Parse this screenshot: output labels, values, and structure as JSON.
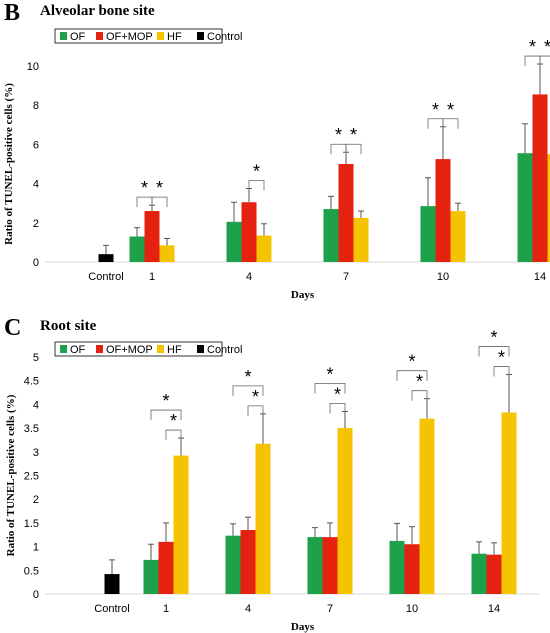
{
  "chart_data": [
    {
      "id": "B",
      "type": "bar",
      "panel_label": "B",
      "title": "Alveolar bone site",
      "ylabel": "Ratio of TUNEL-positive cells (%)",
      "xlabel": "Days",
      "ylim": [
        0,
        10
      ],
      "yticks": [
        "0",
        "2",
        "4",
        "6",
        "8",
        "10"
      ],
      "ytick_values": [
        0,
        2,
        4,
        6,
        8,
        10
      ],
      "categories": [
        "1",
        "4",
        "7",
        "10",
        "14"
      ],
      "control_label": "Control",
      "control": {
        "value": 0.4,
        "error": 0.45,
        "color": "#000000"
      },
      "legend": [
        "OF",
        "OF+MOP",
        "HF",
        "Control"
      ],
      "legend_colors": [
        "#1fa04a",
        "#e5210f",
        "#f5c400",
        "#000000"
      ],
      "series": [
        {
          "name": "OF",
          "color": "#1fa04a",
          "values": [
            1.3,
            2.05,
            2.7,
            2.85,
            5.55
          ],
          "errors": [
            0.45,
            1.0,
            0.65,
            1.45,
            1.5
          ]
        },
        {
          "name": "OF+MOP",
          "color": "#e5210f",
          "values": [
            2.6,
            3.05,
            5.0,
            5.25,
            8.55
          ],
          "errors": [
            0.3,
            0.7,
            0.6,
            1.65,
            1.55
          ]
        },
        {
          "name": "HF",
          "color": "#f5c400",
          "values": [
            0.85,
            1.35,
            2.25,
            2.6,
            5.5
          ],
          "errors": [
            0.35,
            0.6,
            0.35,
            0.4,
            0.85
          ]
        }
      ],
      "significance": [
        {
          "category_index": 0,
          "pairs": [
            [
              0,
              1
            ],
            [
              1,
              2
            ]
          ],
          "symbol": "*"
        },
        {
          "category_index": 1,
          "pairs": [
            [
              1,
              2
            ]
          ],
          "symbol": "*"
        },
        {
          "category_index": 2,
          "pairs": [
            [
              0,
              1
            ],
            [
              1,
              2
            ]
          ],
          "symbol": "*"
        },
        {
          "category_index": 3,
          "pairs": [
            [
              0,
              1
            ],
            [
              1,
              2
            ]
          ],
          "symbol": "*"
        },
        {
          "category_index": 4,
          "pairs": [
            [
              0,
              1
            ],
            [
              1,
              2
            ]
          ],
          "symbol": "*"
        }
      ],
      "legend_position": "top-left",
      "grid": false
    },
    {
      "id": "C",
      "type": "bar",
      "panel_label": "C",
      "title": "Root site",
      "ylabel": "Ratio of TUNEL-positive cells (%)",
      "xlabel": "Days",
      "ylim": [
        0,
        5
      ],
      "yticks": [
        "0",
        "0.5",
        "1",
        "1.5",
        "2",
        "2.5",
        "3",
        "3.5",
        "4",
        "4.5",
        "5"
      ],
      "ytick_values": [
        0,
        0.5,
        1,
        1.5,
        2,
        2.5,
        3,
        3.5,
        4,
        4.5,
        5
      ],
      "categories": [
        "1",
        "4",
        "7",
        "10",
        "14"
      ],
      "control_label": "Control",
      "control": {
        "value": 0.42,
        "error": 0.3,
        "color": "#000000"
      },
      "legend": [
        "OF",
        "OF+MOP",
        "HF",
        "Control"
      ],
      "legend_colors": [
        "#1fa04a",
        "#e5210f",
        "#f5c400",
        "#000000"
      ],
      "series": [
        {
          "name": "OF",
          "color": "#1fa04a",
          "values": [
            0.72,
            1.23,
            1.2,
            1.12,
            0.85
          ],
          "errors": [
            0.33,
            0.25,
            0.2,
            0.37,
            0.25
          ]
        },
        {
          "name": "OF+MOP",
          "color": "#e5210f",
          "values": [
            1.1,
            1.35,
            1.2,
            1.05,
            0.83
          ],
          "errors": [
            0.4,
            0.27,
            0.3,
            0.37,
            0.25
          ]
        },
        {
          "name": "HF",
          "color": "#f5c400",
          "values": [
            2.92,
            3.17,
            3.5,
            3.7,
            3.83
          ],
          "errors": [
            0.37,
            0.63,
            0.35,
            0.42,
            0.8
          ]
        }
      ],
      "significance": [
        {
          "category_index": 0,
          "pairs": [
            [
              0,
              2
            ],
            [
              1,
              2
            ]
          ],
          "symbol": "*"
        },
        {
          "category_index": 1,
          "pairs": [
            [
              0,
              2
            ],
            [
              1,
              2
            ]
          ],
          "symbol": "*"
        },
        {
          "category_index": 2,
          "pairs": [
            [
              0,
              2
            ],
            [
              1,
              2
            ]
          ],
          "symbol": "*"
        },
        {
          "category_index": 3,
          "pairs": [
            [
              0,
              2
            ],
            [
              1,
              2
            ]
          ],
          "symbol": "*"
        },
        {
          "category_index": 4,
          "pairs": [
            [
              0,
              2
            ],
            [
              1,
              2
            ]
          ],
          "symbol": "*"
        }
      ],
      "legend_position": "top-left",
      "grid": false
    }
  ]
}
